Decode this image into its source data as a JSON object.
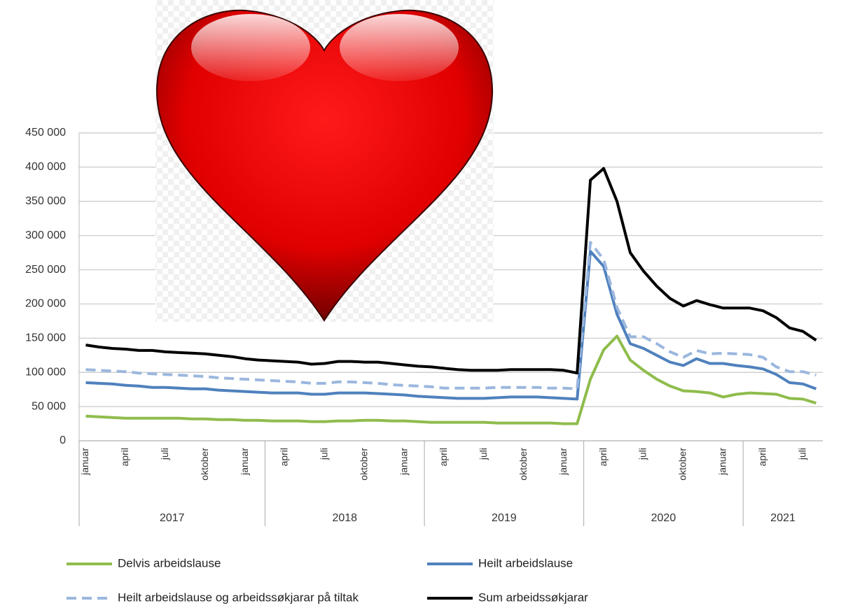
{
  "chart_data": {
    "type": "line",
    "categories": [
      "januar",
      null,
      null,
      "april",
      null,
      null,
      "juli",
      null,
      null,
      "oktober",
      null,
      null,
      "januar",
      null,
      null,
      "april",
      null,
      null,
      "juli",
      null,
      null,
      "oktober",
      null,
      null,
      "januar",
      null,
      null,
      "april",
      null,
      null,
      "juli",
      null,
      null,
      "oktober",
      null,
      null,
      "januar",
      null,
      null,
      "april",
      null,
      null,
      "juli",
      null,
      null,
      "oktober",
      null,
      null,
      "januar",
      null,
      null,
      "april",
      null,
      null,
      "juli",
      null
    ],
    "x_groups": [
      "2017",
      "2017",
      "2017",
      "2017",
      "2017",
      "2017",
      "2017",
      "2017",
      "2017",
      "2017",
      "2017",
      "2017",
      "2017",
      "2017",
      "2018",
      "2018",
      "2018",
      "2018",
      "2018",
      "2018",
      "2018",
      "2018",
      "2018",
      "2018",
      "2018",
      "2018",
      "2019",
      "2019",
      "2019",
      "2019",
      "2019",
      "2019",
      "2019",
      "2019",
      "2019",
      "2019",
      "2019",
      "2019",
      "2020",
      "2020",
      "2020",
      "2020",
      "2020",
      "2020",
      "2020",
      "2020",
      "2020",
      "2020",
      "2020",
      "2020",
      "2021",
      "2021",
      "2021",
      "2021",
      "2021",
      "2021"
    ],
    "ylim": [
      0,
      450000
    ],
    "yticks": [
      {
        "value": 0,
        "label": "0"
      },
      {
        "value": 50000,
        "label": "50 000"
      },
      {
        "value": 100000,
        "label": "100 000"
      },
      {
        "value": 150000,
        "label": "150 000"
      },
      {
        "value": 200000,
        "label": "200 000"
      },
      {
        "value": 250000,
        "label": "250 000"
      },
      {
        "value": 300000,
        "label": "300 000"
      },
      {
        "value": 350000,
        "label": "350 000"
      },
      {
        "value": 400000,
        "label": "400 000"
      },
      {
        "value": 450000,
        "label": "450 000"
      }
    ],
    "grid": true,
    "series": [
      {
        "name": "Delvis arbeidslause",
        "color": "#8fbc4c",
        "dash": false,
        "values": [
          36000,
          35000,
          34000,
          33000,
          33000,
          33000,
          33000,
          33000,
          32000,
          32000,
          31000,
          31000,
          30000,
          30000,
          29000,
          29000,
          29000,
          28000,
          28000,
          29000,
          29000,
          30000,
          30000,
          29000,
          29000,
          28000,
          27000,
          27000,
          27000,
          27000,
          27000,
          26000,
          26000,
          26000,
          26000,
          26000,
          25000,
          25000,
          90000,
          133000,
          153000,
          118000,
          103000,
          90000,
          80000,
          73000,
          72000,
          70000,
          64000,
          68000,
          70000,
          69000,
          68000,
          62000,
          61000,
          55000
        ]
      },
      {
        "name": "Heilt arbeidslause",
        "color": "#4f81bd",
        "dash": false,
        "values": [
          85000,
          84000,
          83000,
          81000,
          80000,
          78000,
          78000,
          77000,
          76000,
          76000,
          74000,
          73000,
          72000,
          71000,
          70000,
          70000,
          70000,
          68000,
          68000,
          70000,
          70000,
          70000,
          69000,
          68000,
          67000,
          65000,
          64000,
          63000,
          62000,
          62000,
          62000,
          63000,
          64000,
          64000,
          64000,
          63000,
          62000,
          61000,
          277000,
          255000,
          185000,
          142000,
          135000,
          125000,
          115000,
          110000,
          120000,
          113000,
          113000,
          110000,
          108000,
          105000,
          97000,
          85000,
          83000,
          76000
        ]
      },
      {
        "name": "Heilt arbeidslause og arbeidssøkjarar på tiltak",
        "color": "#9bb7de",
        "dash": true,
        "values": [
          104000,
          103000,
          102000,
          101000,
          99000,
          98000,
          97000,
          96000,
          95000,
          94000,
          92000,
          91000,
          90000,
          89000,
          88000,
          87000,
          86000,
          84000,
          84000,
          86000,
          86000,
          85000,
          84000,
          82000,
          81000,
          80000,
          79000,
          77000,
          77000,
          77000,
          77000,
          78000,
          78000,
          78000,
          78000,
          77000,
          77000,
          76000,
          290000,
          265000,
          195000,
          152000,
          152000,
          142000,
          130000,
          122000,
          132000,
          127000,
          128000,
          127000,
          126000,
          122000,
          108000,
          101000,
          101000,
          96000
        ]
      },
      {
        "name": "Sum arbeidssøkjarar",
        "color": "#000000",
        "dash": false,
        "values": [
          140000,
          137000,
          135000,
          134000,
          132000,
          132000,
          130000,
          129000,
          128000,
          127000,
          125000,
          123000,
          120000,
          118000,
          117000,
          116000,
          115000,
          112000,
          113000,
          116000,
          116000,
          115000,
          115000,
          113000,
          111000,
          109000,
          108000,
          106000,
          104000,
          103000,
          103000,
          103000,
          104000,
          104000,
          104000,
          104000,
          103000,
          99000,
          381000,
          398000,
          350000,
          275000,
          248000,
          226000,
          208000,
          197000,
          205000,
          199000,
          194000,
          194000,
          194000,
          190000,
          180000,
          165000,
          160000,
          147000
        ]
      }
    ]
  }
}
